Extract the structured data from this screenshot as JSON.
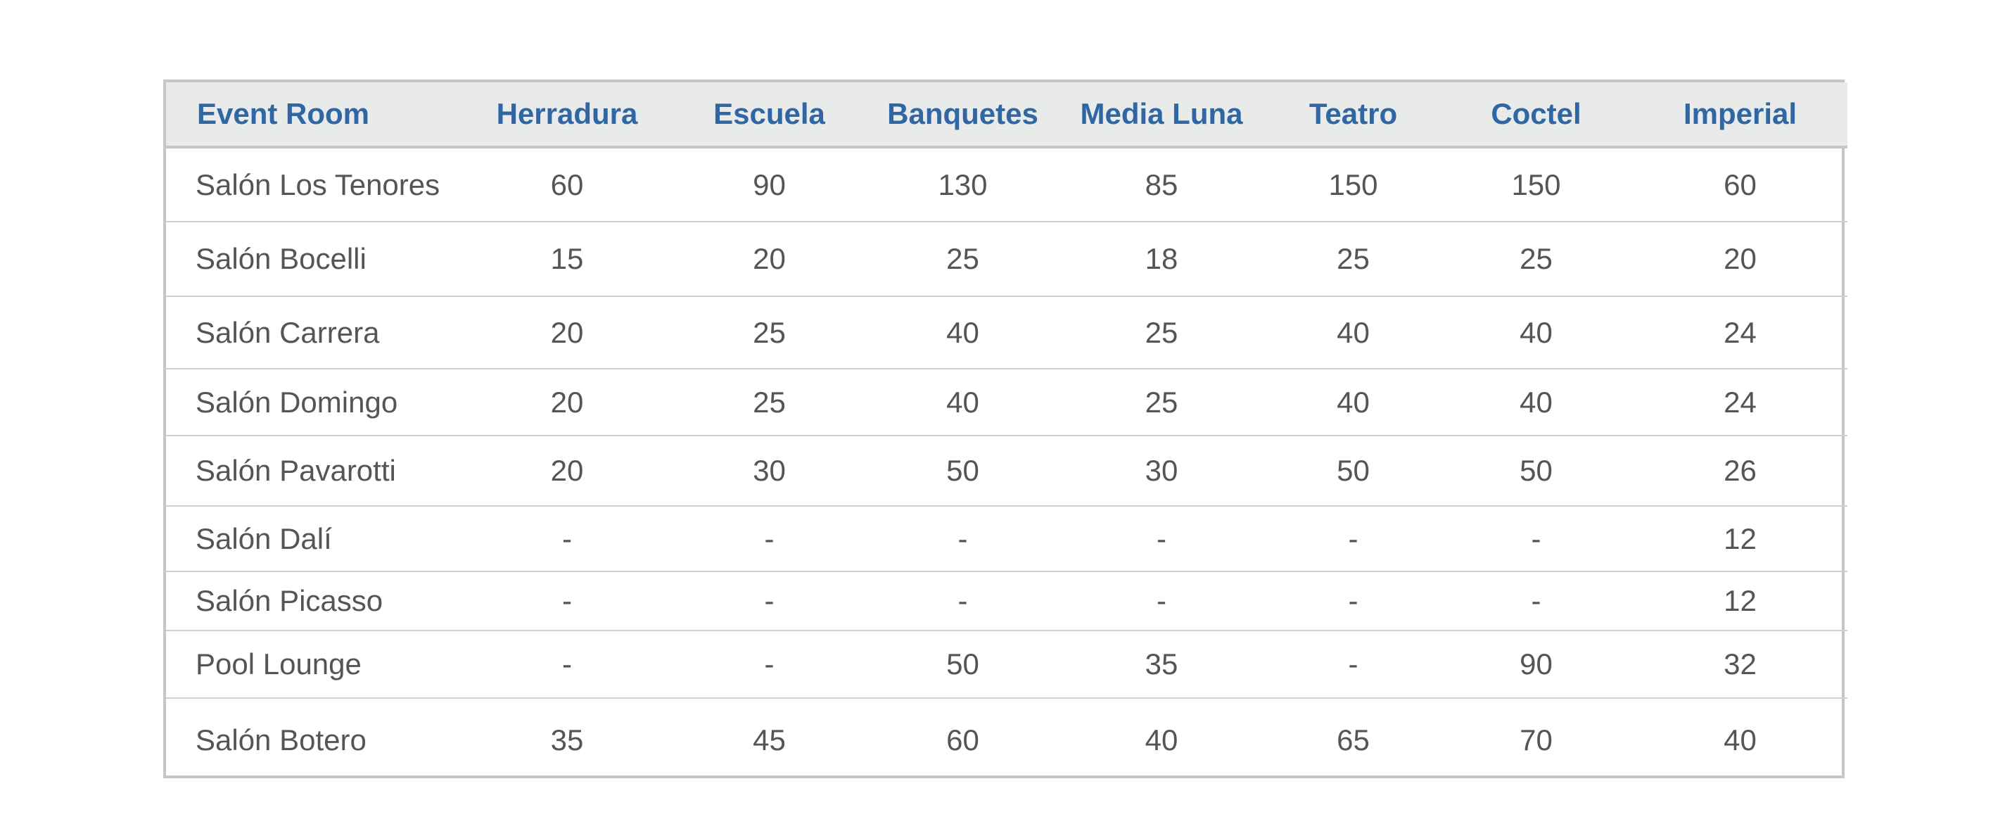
{
  "table": {
    "headers": [
      "Event Room",
      "Herradura",
      "Escuela",
      "Banquetes",
      "Media Luna",
      "Teatro",
      "Coctel",
      "Imperial"
    ],
    "rows": [
      [
        "Salón Los Tenores",
        "60",
        "90",
        "130",
        "85",
        "150",
        "150",
        "60"
      ],
      [
        "Salón Bocelli",
        "15",
        "20",
        "25",
        "18",
        "25",
        "25",
        "20"
      ],
      [
        "Salón Carrera",
        "20",
        "25",
        "40",
        "25",
        "40",
        "40",
        "24"
      ],
      [
        "Salón Domingo",
        "20",
        "25",
        "40",
        "25",
        "40",
        "40",
        "24"
      ],
      [
        "Salón Pavarotti",
        "20",
        "30",
        "50",
        "30",
        "50",
        "50",
        "26"
      ],
      [
        "Salón Dalí",
        "-",
        "-",
        "-",
        "-",
        "-",
        "-",
        "12"
      ],
      [
        "Salón Picasso",
        "-",
        "-",
        "-",
        "-",
        "-",
        "-",
        "12"
      ],
      [
        "Pool Lounge",
        "-",
        "-",
        "50",
        "35",
        "-",
        "90",
        "32"
      ],
      [
        "Salón Botero",
        "35",
        "45",
        "60",
        "40",
        "65",
        "70",
        "40"
      ]
    ]
  }
}
